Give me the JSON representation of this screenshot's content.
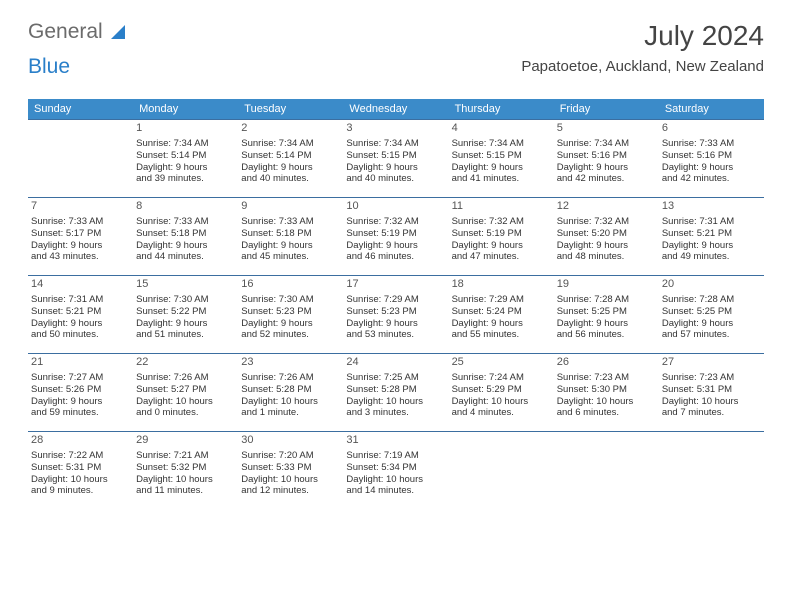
{
  "logo": {
    "word1": "General",
    "word2": "Blue"
  },
  "title": "July 2024",
  "location": "Papatoetoe, Auckland, New Zealand",
  "colors": {
    "header_bg": "#3b8bc9",
    "header_text": "#ffffff",
    "row_border": "#3b6ea0",
    "logo_gray": "#6b6b6b",
    "logo_blue": "#2a7fc9",
    "text": "#333333"
  },
  "daynames": [
    "Sunday",
    "Monday",
    "Tuesday",
    "Wednesday",
    "Thursday",
    "Friday",
    "Saturday"
  ],
  "weeks": [
    [
      null,
      {
        "n": "1",
        "sr": "Sunrise: 7:34 AM",
        "ss": "Sunset: 5:14 PM",
        "d1": "Daylight: 9 hours",
        "d2": "and 39 minutes."
      },
      {
        "n": "2",
        "sr": "Sunrise: 7:34 AM",
        "ss": "Sunset: 5:14 PM",
        "d1": "Daylight: 9 hours",
        "d2": "and 40 minutes."
      },
      {
        "n": "3",
        "sr": "Sunrise: 7:34 AM",
        "ss": "Sunset: 5:15 PM",
        "d1": "Daylight: 9 hours",
        "d2": "and 40 minutes."
      },
      {
        "n": "4",
        "sr": "Sunrise: 7:34 AM",
        "ss": "Sunset: 5:15 PM",
        "d1": "Daylight: 9 hours",
        "d2": "and 41 minutes."
      },
      {
        "n": "5",
        "sr": "Sunrise: 7:34 AM",
        "ss": "Sunset: 5:16 PM",
        "d1": "Daylight: 9 hours",
        "d2": "and 42 minutes."
      },
      {
        "n": "6",
        "sr": "Sunrise: 7:33 AM",
        "ss": "Sunset: 5:16 PM",
        "d1": "Daylight: 9 hours",
        "d2": "and 42 minutes."
      }
    ],
    [
      {
        "n": "7",
        "sr": "Sunrise: 7:33 AM",
        "ss": "Sunset: 5:17 PM",
        "d1": "Daylight: 9 hours",
        "d2": "and 43 minutes."
      },
      {
        "n": "8",
        "sr": "Sunrise: 7:33 AM",
        "ss": "Sunset: 5:18 PM",
        "d1": "Daylight: 9 hours",
        "d2": "and 44 minutes."
      },
      {
        "n": "9",
        "sr": "Sunrise: 7:33 AM",
        "ss": "Sunset: 5:18 PM",
        "d1": "Daylight: 9 hours",
        "d2": "and 45 minutes."
      },
      {
        "n": "10",
        "sr": "Sunrise: 7:32 AM",
        "ss": "Sunset: 5:19 PM",
        "d1": "Daylight: 9 hours",
        "d2": "and 46 minutes."
      },
      {
        "n": "11",
        "sr": "Sunrise: 7:32 AM",
        "ss": "Sunset: 5:19 PM",
        "d1": "Daylight: 9 hours",
        "d2": "and 47 minutes."
      },
      {
        "n": "12",
        "sr": "Sunrise: 7:32 AM",
        "ss": "Sunset: 5:20 PM",
        "d1": "Daylight: 9 hours",
        "d2": "and 48 minutes."
      },
      {
        "n": "13",
        "sr": "Sunrise: 7:31 AM",
        "ss": "Sunset: 5:21 PM",
        "d1": "Daylight: 9 hours",
        "d2": "and 49 minutes."
      }
    ],
    [
      {
        "n": "14",
        "sr": "Sunrise: 7:31 AM",
        "ss": "Sunset: 5:21 PM",
        "d1": "Daylight: 9 hours",
        "d2": "and 50 minutes."
      },
      {
        "n": "15",
        "sr": "Sunrise: 7:30 AM",
        "ss": "Sunset: 5:22 PM",
        "d1": "Daylight: 9 hours",
        "d2": "and 51 minutes."
      },
      {
        "n": "16",
        "sr": "Sunrise: 7:30 AM",
        "ss": "Sunset: 5:23 PM",
        "d1": "Daylight: 9 hours",
        "d2": "and 52 minutes."
      },
      {
        "n": "17",
        "sr": "Sunrise: 7:29 AM",
        "ss": "Sunset: 5:23 PM",
        "d1": "Daylight: 9 hours",
        "d2": "and 53 minutes."
      },
      {
        "n": "18",
        "sr": "Sunrise: 7:29 AM",
        "ss": "Sunset: 5:24 PM",
        "d1": "Daylight: 9 hours",
        "d2": "and 55 minutes."
      },
      {
        "n": "19",
        "sr": "Sunrise: 7:28 AM",
        "ss": "Sunset: 5:25 PM",
        "d1": "Daylight: 9 hours",
        "d2": "and 56 minutes."
      },
      {
        "n": "20",
        "sr": "Sunrise: 7:28 AM",
        "ss": "Sunset: 5:25 PM",
        "d1": "Daylight: 9 hours",
        "d2": "and 57 minutes."
      }
    ],
    [
      {
        "n": "21",
        "sr": "Sunrise: 7:27 AM",
        "ss": "Sunset: 5:26 PM",
        "d1": "Daylight: 9 hours",
        "d2": "and 59 minutes."
      },
      {
        "n": "22",
        "sr": "Sunrise: 7:26 AM",
        "ss": "Sunset: 5:27 PM",
        "d1": "Daylight: 10 hours",
        "d2": "and 0 minutes."
      },
      {
        "n": "23",
        "sr": "Sunrise: 7:26 AM",
        "ss": "Sunset: 5:28 PM",
        "d1": "Daylight: 10 hours",
        "d2": "and 1 minute."
      },
      {
        "n": "24",
        "sr": "Sunrise: 7:25 AM",
        "ss": "Sunset: 5:28 PM",
        "d1": "Daylight: 10 hours",
        "d2": "and 3 minutes."
      },
      {
        "n": "25",
        "sr": "Sunrise: 7:24 AM",
        "ss": "Sunset: 5:29 PM",
        "d1": "Daylight: 10 hours",
        "d2": "and 4 minutes."
      },
      {
        "n": "26",
        "sr": "Sunrise: 7:23 AM",
        "ss": "Sunset: 5:30 PM",
        "d1": "Daylight: 10 hours",
        "d2": "and 6 minutes."
      },
      {
        "n": "27",
        "sr": "Sunrise: 7:23 AM",
        "ss": "Sunset: 5:31 PM",
        "d1": "Daylight: 10 hours",
        "d2": "and 7 minutes."
      }
    ],
    [
      {
        "n": "28",
        "sr": "Sunrise: 7:22 AM",
        "ss": "Sunset: 5:31 PM",
        "d1": "Daylight: 10 hours",
        "d2": "and 9 minutes."
      },
      {
        "n": "29",
        "sr": "Sunrise: 7:21 AM",
        "ss": "Sunset: 5:32 PM",
        "d1": "Daylight: 10 hours",
        "d2": "and 11 minutes."
      },
      {
        "n": "30",
        "sr": "Sunrise: 7:20 AM",
        "ss": "Sunset: 5:33 PM",
        "d1": "Daylight: 10 hours",
        "d2": "and 12 minutes."
      },
      {
        "n": "31",
        "sr": "Sunrise: 7:19 AM",
        "ss": "Sunset: 5:34 PM",
        "d1": "Daylight: 10 hours",
        "d2": "and 14 minutes."
      },
      null,
      null,
      null
    ]
  ]
}
